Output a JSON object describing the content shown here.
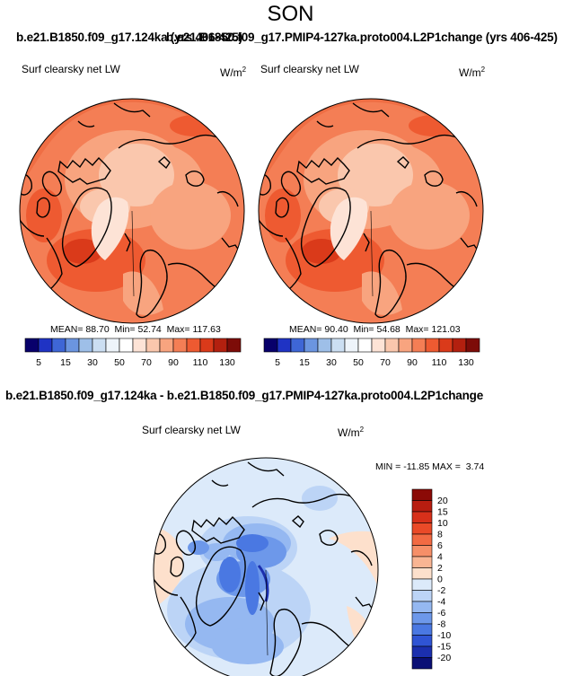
{
  "season_title": "SON",
  "panels": [
    {
      "case_title": "b.e21.B1850.f09_g17.124ka (yrs 406-425)",
      "variable": "Surf clearsky net LW",
      "units": "W/m",
      "units_sup": "2",
      "stats": {
        "mean": "88.70",
        "min": "52.74",
        "max": "117.63"
      }
    },
    {
      "case_title": "b.e21.B1850.f09_g17.PMIP4-127ka.proto004.L2P1change (yrs 406-425)",
      "variable": "Surf clearsky net LW",
      "units": "W/m",
      "units_sup": "2",
      "stats": {
        "mean": "90.40",
        "min": "54.68",
        "max": "121.03"
      }
    }
  ],
  "diff_panel": {
    "title": "b.e21.B1850.f09_g17.124ka - b.e21.B1850.f09_g17.PMIP4-127ka.proto004.L2P1change",
    "variable": "Surf clearsky net LW",
    "units": "W/m",
    "units_sup": "2",
    "stats": {
      "min": "-11.85",
      "max": "3.74"
    }
  },
  "chart_data": [
    {
      "type": "heatmap",
      "projection": "north-polar-stereographic",
      "title": "b.e21.B1850.f09_g17.124ka (yrs 406-425)",
      "variable": "Surf clearsky net LW",
      "units": "W/m2",
      "stats": {
        "mean": 88.7,
        "min": 52.74,
        "max": 117.63
      },
      "colorbar": {
        "orientation": "horizontal",
        "tick_labels": [
          "5",
          "15",
          "30",
          "50",
          "70",
          "90",
          "110",
          "130"
        ],
        "colors": [
          "#08006b",
          "#1f33c4",
          "#3e66d6",
          "#6b95e0",
          "#9ebfe8",
          "#cbdef2",
          "#eef4fa",
          "#ffffff",
          "#fde3d6",
          "#fac7ad",
          "#f8a47f",
          "#f47e55",
          "#ee5a31",
          "#da3a1a",
          "#b3200f",
          "#7d0c08"
        ]
      }
    },
    {
      "type": "heatmap",
      "projection": "north-polar-stereographic",
      "title": "b.e21.B1850.f09_g17.PMIP4-127ka.proto004.L2P1change (yrs 406-425)",
      "variable": "Surf clearsky net LW",
      "units": "W/m2",
      "stats": {
        "mean": 90.4,
        "min": 54.68,
        "max": 121.03
      },
      "colorbar": {
        "orientation": "horizontal",
        "tick_labels": [
          "5",
          "15",
          "30",
          "50",
          "70",
          "90",
          "110",
          "130"
        ],
        "colors": [
          "#08006b",
          "#1f33c4",
          "#3e66d6",
          "#6b95e0",
          "#9ebfe8",
          "#cbdef2",
          "#eef4fa",
          "#ffffff",
          "#fde3d6",
          "#fac7ad",
          "#f8a47f",
          "#f47e55",
          "#ee5a31",
          "#da3a1a",
          "#b3200f",
          "#7d0c08"
        ]
      }
    },
    {
      "type": "heatmap",
      "projection": "north-polar-stereographic",
      "title": "b.e21.B1850.f09_g17.124ka - b.e21.B1850.f09_g17.PMIP4-127ka.proto004.L2P1change",
      "variable": "Surf clearsky net LW",
      "units": "W/m2",
      "stats": {
        "min": -11.85,
        "max": 3.74
      },
      "colorbar": {
        "orientation": "vertical",
        "tick_labels": [
          "20",
          "15",
          "10",
          "8",
          "6",
          "4",
          "2",
          "0",
          "-2",
          "-4",
          "-6",
          "-8",
          "-10",
          "-15",
          "-20"
        ],
        "colors": [
          "#8b0a06",
          "#b81d10",
          "#d7301a",
          "#ea4a28",
          "#f26a43",
          "#f68f68",
          "#f9b593",
          "#fde0cc",
          "#dceafa",
          "#bcd4f6",
          "#95b8f1",
          "#6d98ea",
          "#4a78e2",
          "#2f54d4",
          "#1b2fae",
          "#0a0f75"
        ]
      }
    }
  ]
}
